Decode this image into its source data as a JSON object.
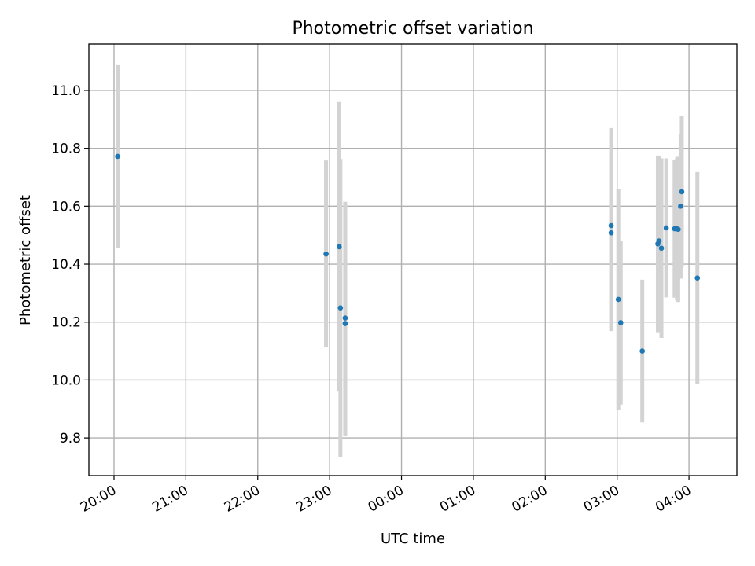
{
  "chart_data": {
    "type": "scatter",
    "title": "Photometric offset variation",
    "xlabel": "UTC time",
    "ylabel": "Photometric offset",
    "x_axis_kind": "time",
    "x_ticks": [
      "20:00",
      "21:00",
      "22:00",
      "23:00",
      "00:00",
      "01:00",
      "02:00",
      "03:00",
      "04:00"
    ],
    "x_range": [
      "19:39",
      "04:40"
    ],
    "ylim": [
      9.67,
      11.16
    ],
    "y_ticks": [
      9.8,
      10.0,
      10.2,
      10.4,
      10.6,
      10.8,
      11.0
    ],
    "grid": true,
    "colors": {
      "points": "#1f77b4",
      "error_bars": "#d3d3d3"
    },
    "points": [
      {
        "t": "20:03",
        "y": 10.772,
        "err": 0.315
      },
      {
        "t": "22:57",
        "y": 10.435,
        "err": 0.323
      },
      {
        "t": "23:08",
        "y": 10.46,
        "err": 0.5
      },
      {
        "t": "23:09",
        "y": 10.249,
        "err": 0.514
      },
      {
        "t": "23:13",
        "y": 10.214,
        "err": 0.401
      },
      {
        "t": "23:13",
        "y": 10.195,
        "err": 0.387
      },
      {
        "t": "02:55",
        "y": 10.533,
        "err": 0.337
      },
      {
        "t": "02:55",
        "y": 10.508,
        "err": 0.339
      },
      {
        "t": "03:01",
        "y": 10.278,
        "err": 0.382
      },
      {
        "t": "03:03",
        "y": 10.198,
        "err": 0.283
      },
      {
        "t": "03:21",
        "y": 10.1,
        "err": 0.246
      },
      {
        "t": "03:34",
        "y": 10.47,
        "err": 0.305
      },
      {
        "t": "03:35",
        "y": 10.48,
        "err": 0.292
      },
      {
        "t": "03:37",
        "y": 10.455,
        "err": 0.31
      },
      {
        "t": "03:41",
        "y": 10.525,
        "err": 0.24
      },
      {
        "t": "03:48",
        "y": 10.522,
        "err": 0.238
      },
      {
        "t": "03:50",
        "y": 10.522,
        "err": 0.245
      },
      {
        "t": "03:51",
        "y": 10.52,
        "err": 0.251
      },
      {
        "t": "03:53",
        "y": 10.6,
        "err": 0.25
      },
      {
        "t": "03:54",
        "y": 10.65,
        "err": 0.262
      },
      {
        "t": "04:07",
        "y": 10.352,
        "err": 0.366
      }
    ]
  }
}
